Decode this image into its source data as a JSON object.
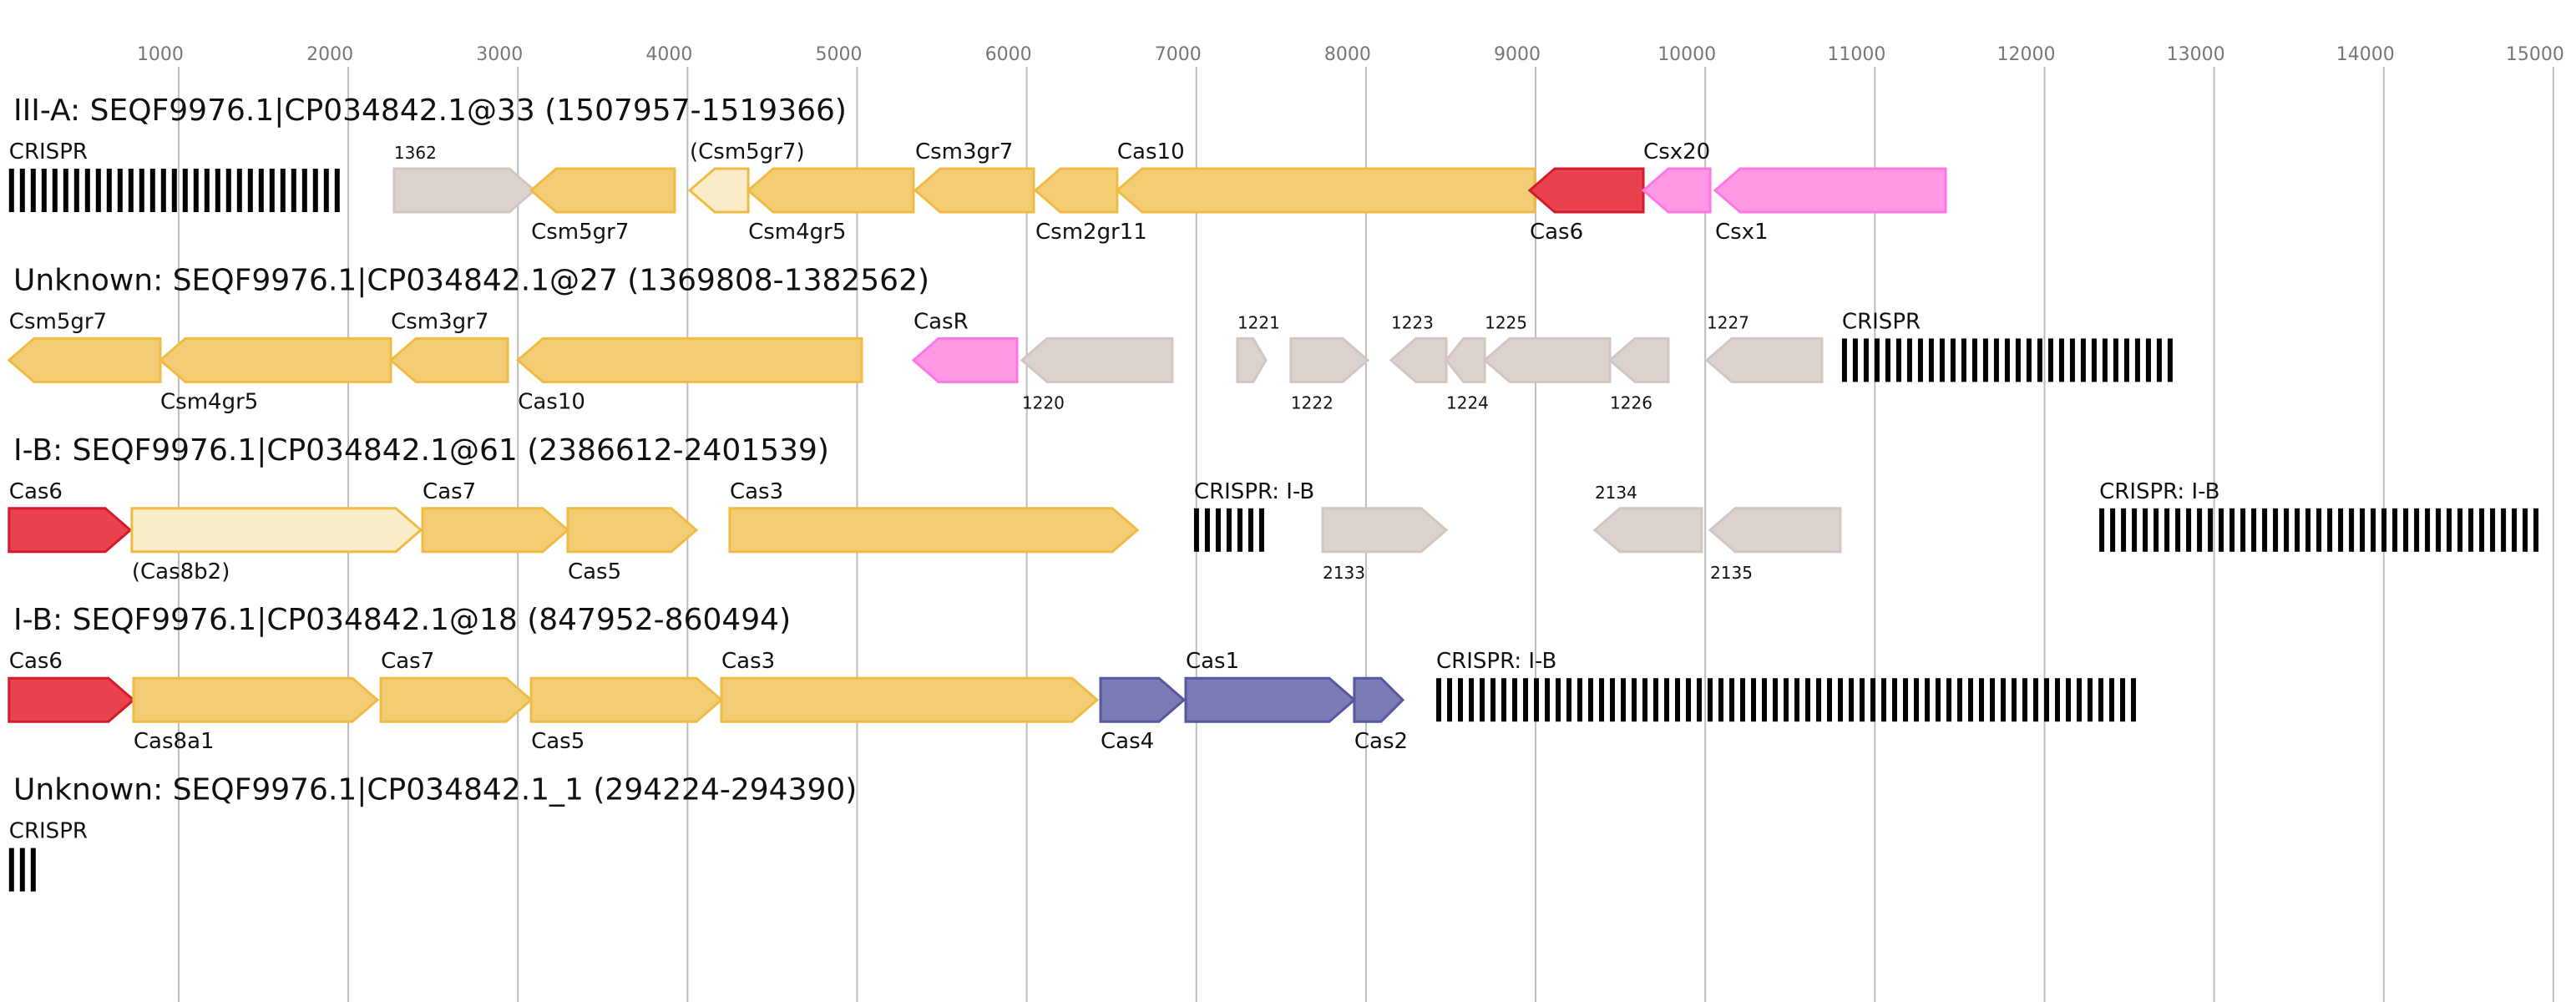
{
  "axis": {
    "ticks": [
      1000,
      2000,
      3000,
      4000,
      5000,
      6000,
      7000,
      8000,
      9000,
      10000,
      11000,
      12000,
      13000,
      14000,
      15000
    ],
    "range_bp": [
      0,
      15200
    ]
  },
  "colors": {
    "core": {
      "fill": "#f2cd74",
      "stroke": "#f0bb44"
    },
    "partial": {
      "fill": "#faecc9",
      "stroke": "#f0bb44"
    },
    "unknown": {
      "fill": "#dcd3ce",
      "stroke": "#d2c6bf"
    },
    "cas6": {
      "fill": "#e8434f",
      "stroke": "#d51b2b"
    },
    "accessory": {
      "fill": "#ff99e6",
      "stroke": "#ff77e0"
    },
    "adaptation": {
      "fill": "#7b7bb5",
      "stroke": "#5757a0"
    },
    "crispr": "#000000"
  },
  "loci": [
    {
      "title": "III-A: SEQF9976.1|CP034842.1@33 (1507957-1519366)",
      "features": [
        {
          "type": "crispr",
          "label": "CRISPR",
          "start": 0,
          "end": 1985,
          "pos": "top"
        },
        {
          "type": "unknown",
          "label": "1362",
          "start": 2270,
          "end": 3097,
          "strand": 1,
          "pos": "top",
          "small": true
        },
        {
          "type": "core",
          "label": "Csm5gr7",
          "start": 3078,
          "end": 3924,
          "strand": -1,
          "pos": "bottom"
        },
        {
          "type": "partial",
          "label": "(Csm5gr7)",
          "start": 4013,
          "end": 4358,
          "strand": -1,
          "pos": "top"
        },
        {
          "type": "core",
          "label": "Csm4gr5",
          "start": 4358,
          "end": 5332,
          "strand": -1,
          "pos": "bottom"
        },
        {
          "type": "core",
          "label": "Csm3gr7",
          "start": 5342,
          "end": 6041,
          "strand": -1,
          "pos": "top"
        },
        {
          "type": "core",
          "label": "Csm2gr11",
          "start": 6051,
          "end": 6533,
          "strand": -1,
          "pos": "bottom"
        },
        {
          "type": "core",
          "label": "Cas10",
          "start": 6533,
          "end": 8995,
          "strand": -1,
          "pos": "top"
        },
        {
          "type": "cas6",
          "label": "Cas6",
          "start": 8965,
          "end": 9635,
          "strand": -1,
          "pos": "bottom"
        },
        {
          "type": "accessory",
          "label": "Csx20",
          "start": 9635,
          "end": 10029,
          "strand": -1,
          "pos": "top"
        },
        {
          "type": "accessory",
          "label": "Csx1",
          "start": 10058,
          "end": 11417,
          "strand": -1,
          "pos": "bottom"
        }
      ]
    },
    {
      "title": "Unknown: SEQF9976.1|CP034842.1@27 (1369808-1382562)",
      "features": [
        {
          "type": "core",
          "label": "Csm5gr7",
          "start": 0,
          "end": 892,
          "strand": -1,
          "pos": "top"
        },
        {
          "type": "core",
          "label": "Csm4gr5",
          "start": 892,
          "end": 2251,
          "strand": -1,
          "pos": "bottom"
        },
        {
          "type": "core",
          "label": "Csm3gr7",
          "start": 2251,
          "end": 2940,
          "strand": -1,
          "pos": "top"
        },
        {
          "type": "core",
          "label": "Cas10",
          "start": 3000,
          "end": 5027,
          "strand": -1,
          "pos": "bottom"
        },
        {
          "type": "accessory",
          "label": "CasR",
          "start": 5332,
          "end": 5943,
          "strand": -1,
          "pos": "top"
        },
        {
          "type": "unknown",
          "label": "1220",
          "start": 5972,
          "end": 6858,
          "strand": -1,
          "pos": "bottom",
          "small": true
        },
        {
          "type": "unknown",
          "label": "1221",
          "start": 7242,
          "end": 7410,
          "strand": 1,
          "pos": "top",
          "small": true
        },
        {
          "type": "unknown",
          "label": "1222",
          "start": 7557,
          "end": 8010,
          "strand": 1,
          "pos": "bottom",
          "small": true
        },
        {
          "type": "unknown",
          "label": "1223",
          "start": 8148,
          "end": 8473,
          "strand": -1,
          "pos": "top",
          "small": true
        },
        {
          "type": "unknown",
          "label": "1224",
          "start": 8473,
          "end": 8700,
          "strand": -1,
          "pos": "bottom",
          "small": true
        },
        {
          "type": "unknown",
          "label": "1225",
          "start": 8700,
          "end": 9438,
          "strand": -1,
          "pos": "top",
          "small": true
        },
        {
          "type": "unknown",
          "label": "1226",
          "start": 9438,
          "end": 9782,
          "strand": -1,
          "pos": "bottom",
          "small": true
        },
        {
          "type": "unknown",
          "label": "1227",
          "start": 10009,
          "end": 10688,
          "strand": -1,
          "pos": "top",
          "small": true
        },
        {
          "type": "crispr",
          "label": "CRISPR",
          "start": 10806,
          "end": 12756,
          "pos": "top"
        }
      ]
    },
    {
      "title": "I-B: SEQF9976.1|CP034842.1@61 (2386612-2401539)",
      "features": [
        {
          "type": "cas6",
          "label": "Cas6",
          "start": 0,
          "end": 715,
          "strand": 1,
          "pos": "top"
        },
        {
          "type": "partial",
          "label": "(Cas8b2)",
          "start": 724,
          "end": 2428,
          "strand": 1,
          "pos": "bottom"
        },
        {
          "type": "core",
          "label": "Cas7",
          "start": 2438,
          "end": 3294,
          "strand": 1,
          "pos": "top"
        },
        {
          "type": "core",
          "label": "Cas5",
          "start": 3294,
          "end": 4052,
          "strand": 1,
          "pos": "bottom"
        },
        {
          "type": "core",
          "label": "Cas3",
          "start": 4249,
          "end": 6652,
          "strand": 1,
          "pos": "top"
        },
        {
          "type": "crispr",
          "label": "CRISPR: I-B",
          "start": 6986,
          "end": 7410,
          "pos": "top"
        },
        {
          "type": "unknown",
          "label": "2133",
          "start": 7745,
          "end": 8473,
          "strand": 1,
          "pos": "bottom",
          "small": true
        },
        {
          "type": "unknown",
          "label": "2134",
          "start": 9349,
          "end": 9979,
          "strand": -1,
          "pos": "top",
          "small": true
        },
        {
          "type": "unknown",
          "label": "2135",
          "start": 10029,
          "end": 10796,
          "strand": -1,
          "pos": "bottom",
          "small": true
        },
        {
          "type": "crispr",
          "label": "CRISPR: I-B",
          "start": 12323,
          "end": 14932,
          "pos": "top"
        }
      ]
    },
    {
      "title": "I-B: SEQF9976.1|CP034842.1@18 (847952-860494)",
      "features": [
        {
          "type": "cas6",
          "label": "Cas6",
          "start": 0,
          "end": 734,
          "strand": 1,
          "pos": "top"
        },
        {
          "type": "core",
          "label": "Cas8a1",
          "start": 734,
          "end": 2172,
          "strand": 1,
          "pos": "bottom"
        },
        {
          "type": "core",
          "label": "Cas7",
          "start": 2192,
          "end": 3078,
          "strand": 1,
          "pos": "top"
        },
        {
          "type": "core",
          "label": "Cas5",
          "start": 3078,
          "end": 4200,
          "strand": 1,
          "pos": "bottom"
        },
        {
          "type": "core",
          "label": "Cas3",
          "start": 4200,
          "end": 6415,
          "strand": 1,
          "pos": "top"
        },
        {
          "type": "adaptation",
          "label": "Cas4",
          "start": 6435,
          "end": 6927,
          "strand": 1,
          "pos": "bottom"
        },
        {
          "type": "adaptation",
          "label": "Cas1",
          "start": 6937,
          "end": 7931,
          "strand": 1,
          "pos": "top"
        },
        {
          "type": "adaptation",
          "label": "Cas2",
          "start": 7931,
          "end": 8217,
          "strand": 1,
          "pos": "bottom"
        },
        {
          "type": "crispr",
          "label": "CRISPR: I-B",
          "start": 8414,
          "end": 12549,
          "pos": "top"
        }
      ]
    },
    {
      "title": "Unknown: SEQF9976.1|CP034842.1_1 (294224-294390)",
      "features": [
        {
          "type": "crispr",
          "label": "CRISPR",
          "start": 0,
          "end": 167,
          "pos": "top"
        }
      ]
    }
  ]
}
